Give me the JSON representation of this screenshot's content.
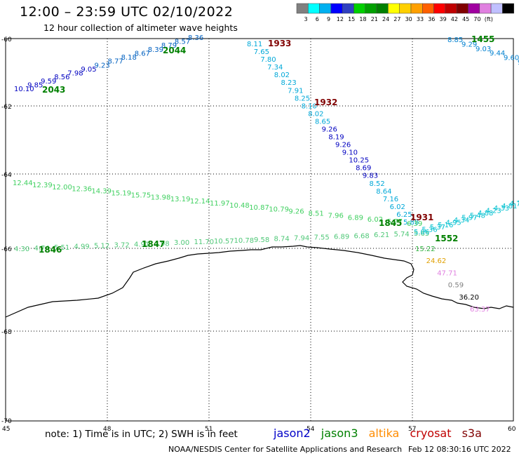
{
  "header": {
    "title": "12:00 – 23:59 UTC 02/10/2022",
    "subtitle": "12 hour collection of altimeter wave heights"
  },
  "legend": {
    "colors": [
      "#808080",
      "#00ffff",
      "#00b0f0",
      "#0000ff",
      "#3040c0",
      "#00d000",
      "#00a000",
      "#008000",
      "#ffff00",
      "#ffd000",
      "#ffa000",
      "#ff6000",
      "#ff0000",
      "#c00000",
      "#800000",
      "#a000a0",
      "#e080e0",
      "#c0c0ff",
      "#000000"
    ],
    "labels": [
      "3",
      "6",
      "9",
      "12",
      "15",
      "18",
      "21",
      "24",
      "27",
      "30",
      "33",
      "36",
      "39",
      "42",
      "45",
      "70",
      "(ft)"
    ]
  },
  "axes": {
    "lon_labels": [
      "45",
      "48",
      "51",
      "54",
      "57",
      "60"
    ],
    "lat_labels": [
      "-60",
      "-62",
      "-64",
      "-66",
      "-68",
      "-70"
    ]
  },
  "tracks": [
    {
      "label": "2043",
      "label_color": "#008000",
      "values": [
        "10.10",
        "9.85",
        "9.59",
        "8.56",
        "7.98",
        "9.05",
        "9.23",
        "8.77",
        "8.18",
        "8.67",
        "8.39",
        "8.79",
        "8.57",
        "8.36"
      ],
      "label2": "2044"
    },
    {
      "label": "1933",
      "label_color": "#800000",
      "values": [
        "8.11",
        "7.65",
        "7.80",
        "7.34",
        "8.02",
        "8.23",
        "7.91",
        "8.25",
        "8.10",
        "8.02",
        "8.65",
        "9.26",
        "8.19",
        "9.26",
        "9.10",
        "10.25",
        "8.69",
        "9.83",
        "8.52",
        "8.64",
        "7.16",
        "6.02",
        "6.25",
        "5.88"
      ],
      "label2": "1932",
      "label3": "1931"
    },
    {
      "label": "1455",
      "label_color": "#008000",
      "values": [
        "8.85",
        "9.29",
        "9.03",
        "9.44",
        "9.60",
        "9.46"
      ]
    },
    {
      "label": "1845",
      "label_color": "#008000",
      "values": [
        "12.44",
        "12.39",
        "12.00",
        "12.36",
        "14.39",
        "15.19",
        "15.75",
        "13.98",
        "13.19",
        "12.14",
        "11.97",
        "10.48",
        "10.87",
        "10.79",
        "9.26",
        "8.51",
        "7.96",
        "6.89",
        "6.02",
        "5.77",
        "6.39"
      ]
    },
    {
      "label": "1846",
      "label_color": "#008000",
      "values": [
        "4.30",
        "4.74",
        "5.51",
        "4.99",
        "5.12",
        "3.72",
        "4.91",
        "4.98",
        "3.00",
        "11.70",
        "10.57",
        "10.78",
        "9.58",
        "8.74",
        "7.94",
        "7.55",
        "6.89",
        "6.68",
        "6.21",
        "5.74",
        "5.65"
      ],
      "label2": "1847"
    },
    {
      "label": "1552",
      "label_color": "#008000",
      "values": [
        "5.06",
        "5.36",
        "5.37",
        "5.16",
        "4.95",
        "4.34",
        "5.97",
        "5.48",
        "4.88",
        "4.23",
        "4.33",
        "4.81",
        "4.70",
        "4.24"
      ]
    },
    {
      "label": "",
      "label_color": "#000000",
      "values": [
        "15.22",
        "24.62",
        "47.71",
        "0.59",
        "36.20",
        "63.37"
      ]
    }
  ],
  "footer": {
    "note": "note: 1) Time is in UTC; 2) SWH is in feet",
    "satellites": [
      {
        "name": "jason2",
        "color": "#0000c8"
      },
      {
        "name": "jason3",
        "color": "#008000"
      },
      {
        "name": "altika",
        "color": "#ff8c00"
      },
      {
        "name": "cryosat",
        "color": "#c00000"
      },
      {
        "name": "s3a",
        "color": "#800000"
      }
    ],
    "credit": "NOAA/NESDIS Center for Satellite Applications and Research",
    "stamp": "Feb 12 08:30:16 UTC 2022"
  }
}
